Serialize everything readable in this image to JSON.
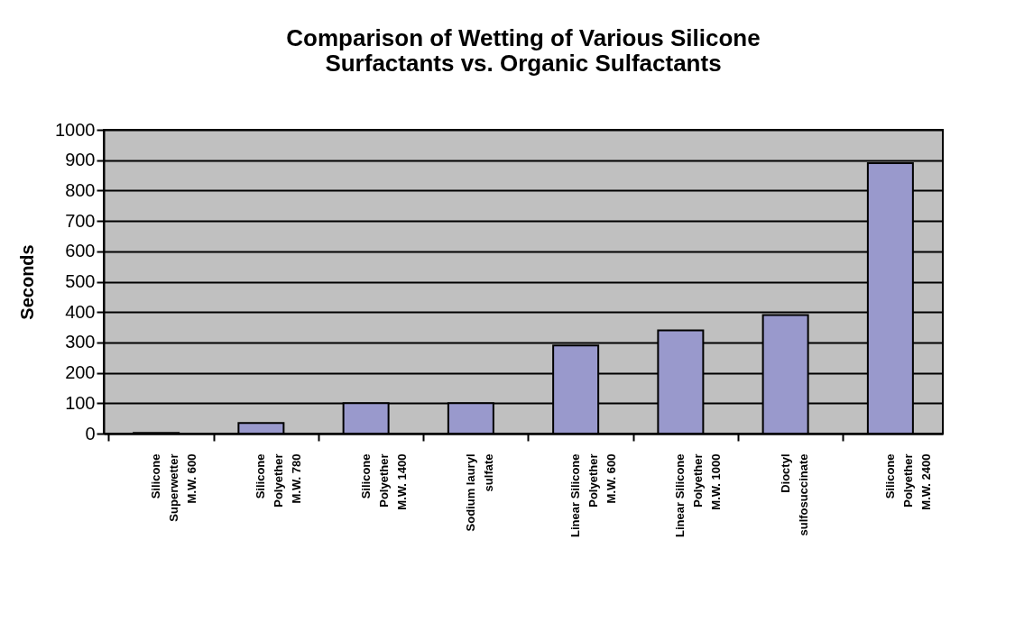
{
  "chart_data": {
    "type": "bar",
    "title": [
      "Comparison of Wetting of Various Silicone",
      "Surfactants vs. Organic Sulfactants"
    ],
    "ylabel": "Seconds",
    "categories": [
      "Silicone\nSuperwetter\nM.W. 600",
      "Silicone\nPolyether\nM.W. 780",
      "Silicone\nPolyether\nM.W. 1400",
      "Sodium lauryl\nsulfate",
      "Linear Silicone\nPolyether\nM.W. 600",
      "Linear Silicone\nPolyether\nM.W. 1000",
      "Dioctyl\nsulfosuccinate",
      "Silicone\nPolyether\nM.W. 2400"
    ],
    "values": [
      2,
      35,
      100,
      100,
      290,
      340,
      390,
      890
    ],
    "color": "#9999cc",
    "ylim": [
      0,
      1000
    ],
    "yticks": [
      0,
      100,
      200,
      300,
      400,
      500,
      600,
      700,
      800,
      900,
      1000
    ],
    "grid": "y"
  }
}
